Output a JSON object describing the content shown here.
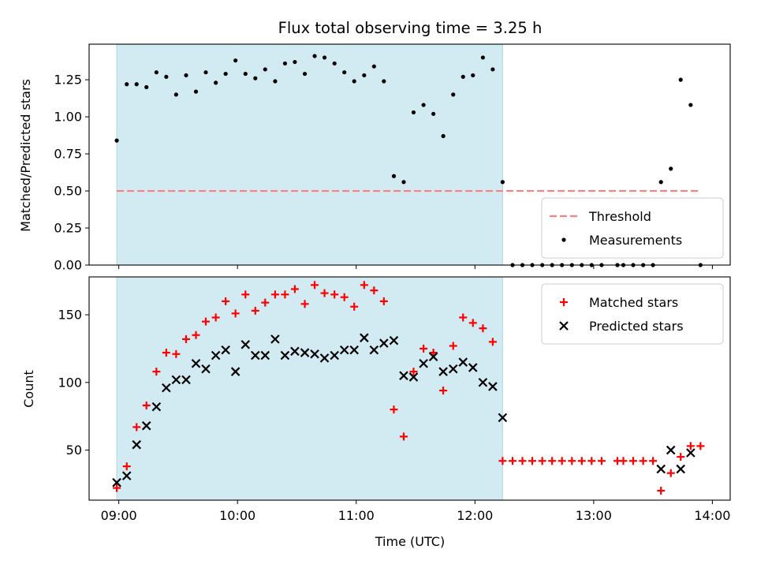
{
  "chart_data": {
    "type": "scatter",
    "title": "Flux total observing time = 3.25 h",
    "xlabel": "Time (UTC)",
    "x_range_hours": [
      8.75,
      14.15
    ],
    "x_ticks": [
      {
        "value": 9,
        "label": "09:00"
      },
      {
        "value": 10,
        "label": "10:00"
      },
      {
        "value": 11,
        "label": "11:00"
      },
      {
        "value": 12,
        "label": "12:00"
      },
      {
        "value": 13,
        "label": "13:00"
      },
      {
        "value": 14,
        "label": "14:00"
      }
    ],
    "shaded_interval_hours": [
      8.983,
      12.233
    ],
    "shade_color": "#add8e6",
    "panels": [
      {
        "id": "ratio",
        "ylabel": "Matched/Predicted stars",
        "ylim": [
          0,
          1.49
        ],
        "y_ticks": [
          "0.00",
          "0.25",
          "0.50",
          "0.75",
          "1.00",
          "1.25"
        ],
        "y_tick_values": [
          0,
          0.25,
          0.5,
          0.75,
          1.0,
          1.25
        ],
        "threshold": {
          "name": "Threshold",
          "value": 0.5,
          "x_range_hours": [
            8.983,
            13.9
          ],
          "color": "#ff7f7f"
        },
        "legend": {
          "placement": "lower right"
        },
        "series": [
          {
            "name": "Measurements",
            "marker": "dot",
            "color": "#000000",
            "points": [
              [
                8.983,
                0.84
              ],
              [
                9.067,
                1.22
              ],
              [
                9.15,
                1.22
              ],
              [
                9.233,
                1.2
              ],
              [
                9.317,
                1.3
              ],
              [
                9.4,
                1.27
              ],
              [
                9.483,
                1.15
              ],
              [
                9.567,
                1.28
              ],
              [
                9.65,
                1.17
              ],
              [
                9.733,
                1.3
              ],
              [
                9.817,
                1.23
              ],
              [
                9.9,
                1.29
              ],
              [
                9.983,
                1.38
              ],
              [
                10.067,
                1.29
              ],
              [
                10.15,
                1.26
              ],
              [
                10.233,
                1.32
              ],
              [
                10.317,
                1.24
              ],
              [
                10.4,
                1.36
              ],
              [
                10.483,
                1.37
              ],
              [
                10.567,
                1.29
              ],
              [
                10.65,
                1.41
              ],
              [
                10.733,
                1.4
              ],
              [
                10.817,
                1.36
              ],
              [
                10.9,
                1.3
              ],
              [
                10.983,
                1.24
              ],
              [
                11.067,
                1.28
              ],
              [
                11.15,
                1.34
              ],
              [
                11.233,
                1.24
              ],
              [
                11.317,
                0.6
              ],
              [
                11.4,
                0.56
              ],
              [
                11.483,
                1.03
              ],
              [
                11.567,
                1.08
              ],
              [
                11.65,
                1.02
              ],
              [
                11.733,
                0.87
              ],
              [
                11.817,
                1.15
              ],
              [
                11.9,
                1.27
              ],
              [
                11.983,
                1.28
              ],
              [
                12.067,
                1.4
              ],
              [
                12.15,
                1.32
              ],
              [
                12.233,
                0.56
              ],
              [
                12.317,
                0
              ],
              [
                12.4,
                0
              ],
              [
                12.483,
                0
              ],
              [
                12.567,
                0
              ],
              [
                12.65,
                0
              ],
              [
                12.733,
                0
              ],
              [
                12.817,
                0
              ],
              [
                12.9,
                0
              ],
              [
                12.983,
                0
              ],
              [
                13.067,
                0
              ],
              [
                13.2,
                0
              ],
              [
                13.25,
                0
              ],
              [
                13.333,
                0
              ],
              [
                13.417,
                0
              ],
              [
                13.5,
                0
              ],
              [
                13.567,
                0.56
              ],
              [
                13.65,
                0.65
              ],
              [
                13.733,
                1.25
              ],
              [
                13.817,
                1.08
              ],
              [
                13.9,
                0
              ]
            ]
          }
        ]
      },
      {
        "id": "counts",
        "ylabel": "Count",
        "ylim": [
          13,
          178
        ],
        "y_ticks": [
          "50",
          "100",
          "150"
        ],
        "y_tick_values": [
          50,
          100,
          150
        ],
        "legend": {
          "placement": "upper right"
        },
        "series": [
          {
            "name": "Matched stars",
            "marker": "plus",
            "color": "#ff0000",
            "points": [
              [
                8.983,
                22
              ],
              [
                9.067,
                38
              ],
              [
                9.15,
                67
              ],
              [
                9.233,
                83
              ],
              [
                9.317,
                108
              ],
              [
                9.4,
                122
              ],
              [
                9.483,
                121
              ],
              [
                9.567,
                132
              ],
              [
                9.65,
                135
              ],
              [
                9.733,
                145
              ],
              [
                9.817,
                148
              ],
              [
                9.9,
                160
              ],
              [
                9.983,
                151
              ],
              [
                10.067,
                165
              ],
              [
                10.15,
                153
              ],
              [
                10.233,
                159
              ],
              [
                10.317,
                165
              ],
              [
                10.4,
                165
              ],
              [
                10.483,
                169
              ],
              [
                10.567,
                158
              ],
              [
                10.65,
                172
              ],
              [
                10.733,
                166
              ],
              [
                10.817,
                165
              ],
              [
                10.9,
                163
              ],
              [
                10.983,
                156
              ],
              [
                11.067,
                172
              ],
              [
                11.15,
                168
              ],
              [
                11.233,
                160
              ],
              [
                11.317,
                80
              ],
              [
                11.4,
                60
              ],
              [
                11.483,
                108
              ],
              [
                11.567,
                125
              ],
              [
                11.65,
                122
              ],
              [
                11.733,
                94
              ],
              [
                11.817,
                127
              ],
              [
                11.9,
                148
              ],
              [
                11.983,
                144
              ],
              [
                12.067,
                140
              ],
              [
                12.15,
                130
              ],
              [
                12.233,
                42
              ],
              [
                12.317,
                42
              ],
              [
                12.4,
                42
              ],
              [
                12.483,
                42
              ],
              [
                12.567,
                42
              ],
              [
                12.65,
                42
              ],
              [
                12.733,
                42
              ],
              [
                12.817,
                42
              ],
              [
                12.9,
                42
              ],
              [
                12.983,
                42
              ],
              [
                13.067,
                42
              ],
              [
                13.2,
                42
              ],
              [
                13.25,
                42
              ],
              [
                13.333,
                42
              ],
              [
                13.417,
                42
              ],
              [
                13.5,
                42
              ],
              [
                13.567,
                20
              ],
              [
                13.65,
                33
              ],
              [
                13.733,
                45
              ],
              [
                13.817,
                53
              ],
              [
                13.9,
                53
              ]
            ]
          },
          {
            "name": "Predicted stars",
            "marker": "x",
            "color": "#000000",
            "points": [
              [
                8.983,
                26
              ],
              [
                9.067,
                31
              ],
              [
                9.15,
                54
              ],
              [
                9.233,
                68
              ],
              [
                9.317,
                82
              ],
              [
                9.4,
                96
              ],
              [
                9.483,
                102
              ],
              [
                9.567,
                102
              ],
              [
                9.65,
                114
              ],
              [
                9.733,
                110
              ],
              [
                9.817,
                120
              ],
              [
                9.9,
                124
              ],
              [
                9.983,
                108
              ],
              [
                10.067,
                128
              ],
              [
                10.15,
                120
              ],
              [
                10.233,
                120
              ],
              [
                10.317,
                132
              ],
              [
                10.4,
                120
              ],
              [
                10.483,
                123
              ],
              [
                10.567,
                122
              ],
              [
                10.65,
                121
              ],
              [
                10.733,
                118
              ],
              [
                10.817,
                120
              ],
              [
                10.9,
                124
              ],
              [
                10.983,
                124
              ],
              [
                11.067,
                133
              ],
              [
                11.15,
                124
              ],
              [
                11.233,
                129
              ],
              [
                11.317,
                131
              ],
              [
                11.4,
                105
              ],
              [
                11.483,
                104
              ],
              [
                11.567,
                114
              ],
              [
                11.65,
                119
              ],
              [
                11.733,
                108
              ],
              [
                11.817,
                110
              ],
              [
                11.9,
                115
              ],
              [
                11.983,
                111
              ],
              [
                12.067,
                100
              ],
              [
                12.15,
                97
              ],
              [
                12.233,
                74
              ],
              [
                13.567,
                36
              ],
              [
                13.65,
                50
              ],
              [
                13.733,
                36
              ],
              [
                13.817,
                48
              ]
            ]
          }
        ]
      }
    ]
  }
}
